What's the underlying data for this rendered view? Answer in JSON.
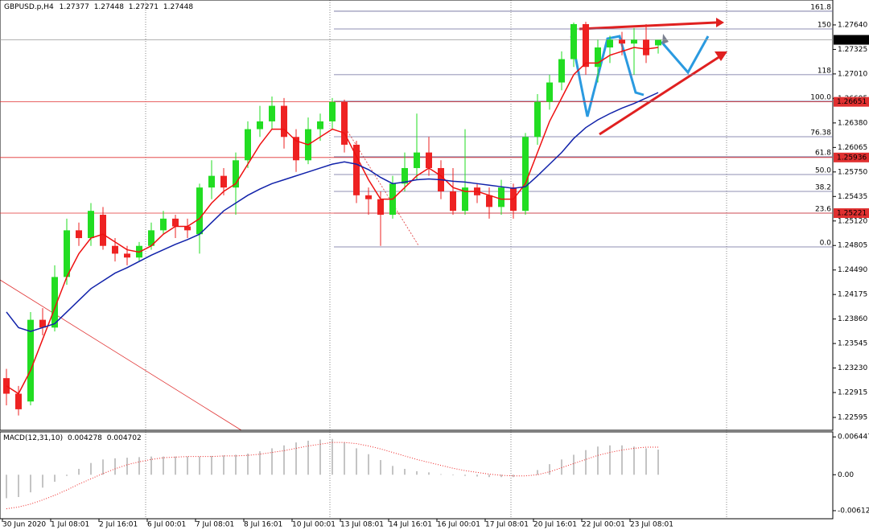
{
  "chart_data": {
    "type": "candlestick",
    "symbol": "GBPUSD.p,H4",
    "categories": [
      "30 Jun 2020",
      null,
      null,
      null,
      "1 Jul 08:01",
      null,
      null,
      null,
      "2 Jul 16:01",
      null,
      null,
      null,
      "6 Jul 00:01",
      null,
      null,
      null,
      "7 Jul 08:01",
      null,
      null,
      null,
      "8 Jul 16:01",
      null,
      null,
      null,
      "10 Jul 00:01",
      null,
      null,
      null,
      "13 Jul 08:01",
      null,
      null,
      null,
      "14 Jul 16:01",
      null,
      null,
      null,
      "16 Jul 00:01",
      null,
      null,
      null,
      "17 Jul 08:01",
      null,
      null,
      null,
      "20 Jul 16:01",
      null,
      null,
      null,
      "22 Jul 00:01",
      null,
      null,
      null,
      "23 Jul 08:01",
      null,
      null
    ],
    "open": [
      1.231,
      1.229,
      1.228,
      1.2385,
      1.2375,
      1.244,
      1.25,
      1.249,
      1.252,
      1.248,
      1.247,
      1.2465,
      1.248,
      1.25,
      1.2515,
      1.2505,
      1.2495,
      1.2555,
      1.257,
      1.2555,
      1.259,
      1.263,
      1.264,
      1.266,
      1.262,
      1.259,
      1.263,
      1.264,
      1.2665,
      1.261,
      1.2545,
      1.254,
      1.252,
      1.256,
      1.258,
      1.26,
      1.258,
      1.255,
      1.2525,
      1.2555,
      1.2545,
      1.253,
      1.2555,
      1.2525,
      1.262,
      1.2665,
      1.269,
      1.272,
      1.2765,
      1.271,
      1.2735,
      1.2745,
      1.274,
      1.2745,
      1.27377
    ],
    "high": [
      1.2322,
      1.23,
      1.2395,
      1.24,
      1.2455,
      1.2515,
      1.251,
      1.2535,
      1.253,
      1.249,
      1.248,
      1.2485,
      1.251,
      1.2525,
      1.252,
      1.2515,
      1.256,
      1.259,
      1.258,
      1.26,
      1.264,
      1.266,
      1.2672,
      1.267,
      1.263,
      1.2645,
      1.265,
      1.267,
      1.2668,
      1.2615,
      1.2555,
      1.255,
      1.257,
      1.26,
      1.265,
      1.262,
      1.259,
      1.258,
      1.263,
      1.256,
      1.2555,
      1.2565,
      1.256,
      1.2625,
      1.2675,
      1.27,
      1.273,
      1.2767,
      1.2768,
      1.2745,
      1.275,
      1.2755,
      1.276,
      1.2765,
      1.27448
    ],
    "low": [
      1.2275,
      1.2262,
      1.2275,
      1.2365,
      1.237,
      1.243,
      1.248,
      1.248,
      1.2475,
      1.246,
      1.2455,
      1.246,
      1.2475,
      1.2495,
      1.249,
      1.249,
      1.247,
      1.254,
      1.2545,
      1.252,
      1.258,
      1.262,
      1.263,
      1.2605,
      1.2575,
      1.2585,
      1.2615,
      1.263,
      1.26,
      1.2535,
      1.252,
      1.248,
      1.2515,
      1.255,
      1.2565,
      1.257,
      1.254,
      1.252,
      1.252,
      1.2535,
      1.2515,
      1.252,
      1.2515,
      1.252,
      1.261,
      1.2655,
      1.268,
      1.271,
      1.27,
      1.269,
      1.2715,
      1.2725,
      1.27,
      1.2715,
      1.27271
    ],
    "close": [
      1.229,
      1.227,
      1.2385,
      1.2375,
      1.244,
      1.25,
      1.249,
      1.2525,
      1.248,
      1.247,
      1.2465,
      1.248,
      1.25,
      1.2515,
      1.2505,
      1.25,
      1.2555,
      1.257,
      1.2555,
      1.259,
      1.263,
      1.264,
      1.266,
      1.262,
      1.259,
      1.263,
      1.264,
      1.2665,
      1.261,
      1.2545,
      1.254,
      1.252,
      1.256,
      1.258,
      1.26,
      1.258,
      1.255,
      1.2525,
      1.2555,
      1.2545,
      1.253,
      1.2555,
      1.2525,
      1.262,
      1.2665,
      1.269,
      1.272,
      1.2765,
      1.271,
      1.2735,
      1.2745,
      1.274,
      1.2745,
      1.2725,
      1.27448
    ],
    "up_color": "#22dd22",
    "down_color": "#ee2222",
    "ma_fast": {
      "color": "#ee1111",
      "values": [
        1.23,
        1.229,
        1.232,
        1.236,
        1.24,
        1.244,
        1.247,
        1.249,
        1.2495,
        1.2485,
        1.2475,
        1.2472,
        1.248,
        1.2495,
        1.2505,
        1.2505,
        1.2515,
        1.2535,
        1.255,
        1.256,
        1.2585,
        1.261,
        1.263,
        1.263,
        1.2615,
        1.261,
        1.262,
        1.263,
        1.2625,
        1.2595,
        1.2565,
        1.254,
        1.254,
        1.2555,
        1.257,
        1.258,
        1.257,
        1.2555,
        1.255,
        1.255,
        1.2545,
        1.254,
        1.254,
        1.256,
        1.26,
        1.264,
        1.267,
        1.27,
        1.2715,
        1.2715,
        1.2725,
        1.273,
        1.2735,
        1.2733,
        1.2735
      ]
    },
    "ma_slow": {
      "color": "#1122aa",
      "values": [
        1.2395,
        1.2375,
        1.237,
        1.2375,
        1.238,
        1.2395,
        1.241,
        1.2425,
        1.2435,
        1.2445,
        1.2452,
        1.246,
        1.2468,
        1.2475,
        1.2482,
        1.2488,
        1.2495,
        1.251,
        1.2525,
        1.2535,
        1.2545,
        1.2553,
        1.256,
        1.2565,
        1.257,
        1.2575,
        1.258,
        1.2585,
        1.2588,
        1.2585,
        1.2578,
        1.2568,
        1.256,
        1.2562,
        1.2565,
        1.2566,
        1.2565,
        1.2563,
        1.2562,
        1.256,
        1.2558,
        1.2556,
        1.2554,
        1.2556,
        1.257,
        1.2585,
        1.26,
        1.2618,
        1.2632,
        1.2642,
        1.265,
        1.2657,
        1.2663,
        1.267,
        1.2677
      ]
    },
    "ylim": [
      1.2243,
      1.2796
    ],
    "yticks": [
      {
        "value": 1.2764,
        "label": "1.27640"
      },
      1.27325,
      {
        "value": 1.2701,
        "label": "1.27010"
      },
      1.26695,
      {
        "value": 1.2638,
        "label": "1.26380"
      },
      1.26065,
      {
        "value": 1.2575,
        "label": "1.25750"
      },
      1.25435,
      {
        "value": 1.2512,
        "label": "1.25120"
      },
      1.24805,
      {
        "value": 1.2449,
        "label": "1.24490"
      },
      1.24175,
      {
        "value": 1.2386,
        "label": "1.23860"
      },
      1.23545,
      {
        "value": 1.2323,
        "label": "1.23230"
      },
      1.22915,
      1.22595
    ],
    "levels": [
      1.26651,
      1.25936,
      1.25221
    ],
    "level_color": "#e03030",
    "fib_levels": [
      {
        "value": 1.27816,
        "label": "161.8"
      },
      {
        "value": 1.27588,
        "label": "150"
      },
      {
        "value": 1.27,
        "label": "118"
      },
      {
        "value": 1.26658,
        "label": "100.0"
      },
      {
        "value": 1.26203,
        "label": "76.38"
      },
      {
        "value": 1.25945,
        "label": "61.8"
      },
      {
        "value": 1.25717,
        "label": "50.0"
      },
      {
        "value": 1.255,
        "label": "38.2"
      },
      {
        "value": 1.25221,
        "label": "23.6"
      },
      {
        "value": 1.24787,
        "label": "0.0"
      }
    ],
    "fib_color": "#6a6a9a",
    "macd": {
      "title": "MACD(12,31,10)",
      "bar_color": "#b0b0b0",
      "signal_color": "#ee2222",
      "histogram": [
        -0.004,
        -0.0038,
        -0.003,
        -0.0022,
        -0.0012,
        -0.0002,
        0.001,
        0.002,
        0.0026,
        0.0028,
        0.0029,
        0.003,
        0.0031,
        0.0031,
        0.0031,
        0.0031,
        0.0031,
        0.0032,
        0.0033,
        0.0034,
        0.0036,
        0.004,
        0.0045,
        0.005,
        0.0055,
        0.0058,
        0.006,
        0.0061,
        0.0055,
        0.0045,
        0.0035,
        0.0025,
        0.0015,
        0.001,
        0.0006,
        0.0004,
        0.0001,
        -0.0001,
        -0.0002,
        -0.0003,
        -0.0004,
        -0.0004,
        -0.0004,
        0,
        0.0008,
        0.0018,
        0.0026,
        0.0034,
        0.0042,
        0.0048,
        0.005,
        0.005,
        0.0048,
        0.0045,
        0.004278
      ],
      "signal": [
        -0.0058,
        -0.0055,
        -0.005,
        -0.0043,
        -0.0035,
        -0.0026,
        -0.0016,
        -0.0007,
        0.0002,
        0.001,
        0.0017,
        0.0022,
        0.0026,
        0.0029,
        0.003,
        0.0031,
        0.0031,
        0.0031,
        0.0032,
        0.0032,
        0.0033,
        0.0035,
        0.0038,
        0.0041,
        0.0045,
        0.0049,
        0.0052,
        0.0055,
        0.0055,
        0.0053,
        0.0049,
        0.0044,
        0.0038,
        0.0032,
        0.0026,
        0.0021,
        0.0016,
        0.0011,
        0.0007,
        0.0004,
        0.0001,
        -0.0001,
        -0.0002,
        -0.0002,
        0,
        0.0005,
        0.0012,
        0.0019,
        0.0026,
        0.0033,
        0.0038,
        0.0042,
        0.0045,
        0.0047,
        0.004702
      ],
      "ylim": [
        -0.0075,
        0.0073
      ],
      "yticks": [
        0.006447,
        {
          "value": 0,
          "label": "0.00"
        },
        -0.006125
      ]
    }
  }
}
